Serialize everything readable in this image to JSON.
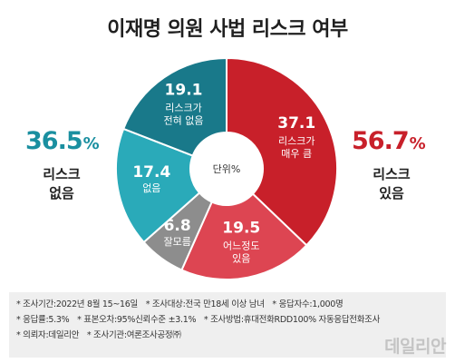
{
  "title": "이재명 의원 사법 리스크 여부",
  "left_summary": {
    "value": "36.5",
    "unit": "%",
    "label_line1": "리스크",
    "label_line2": "없음",
    "color": "#1a8fa0"
  },
  "right_summary": {
    "value": "56.7",
    "unit": "%",
    "label_line1": "리스크",
    "label_line2": "있음",
    "color": "#c8202a"
  },
  "center_label": "단위%",
  "chart_data": {
    "type": "pie",
    "title": "이재명 의원 사법 리스크 여부",
    "unit": "%",
    "slices": [
      {
        "label_line1": "리스크가",
        "label_line2": "매우 큼",
        "value": 37.1,
        "color": "#c8202a"
      },
      {
        "label_line1": "어느정도",
        "label_line2": "있음",
        "value": 19.5,
        "color": "#dd4552"
      },
      {
        "label_line1": "잘모름",
        "label_line2": "",
        "value": 6.8,
        "color": "#8d8d8d"
      },
      {
        "label_line1": "없음",
        "label_line2": "",
        "value": 17.4,
        "color": "#2aaab9"
      },
      {
        "label_line1": "리스크가",
        "label_line2": "전혀 없음",
        "value": 19.1,
        "color": "#19798a"
      }
    ]
  },
  "notes": {
    "row1": [
      "* 조사기간:2022년 8월 15~16일",
      "* 조사대상:전국 만18세 이상 남녀",
      "* 응답자수:1,000명"
    ],
    "row2": [
      "* 응답률:5.3%",
      "* 표본오차:95%신뢰수준 ±3.1%",
      "* 조사방법:휴대전화RDD100% 자동응답전화조사"
    ],
    "row3": [
      "* 의뢰자:데일리안",
      "* 조사기관:여론조사공정㈜"
    ]
  },
  "watermark": "데일리안"
}
